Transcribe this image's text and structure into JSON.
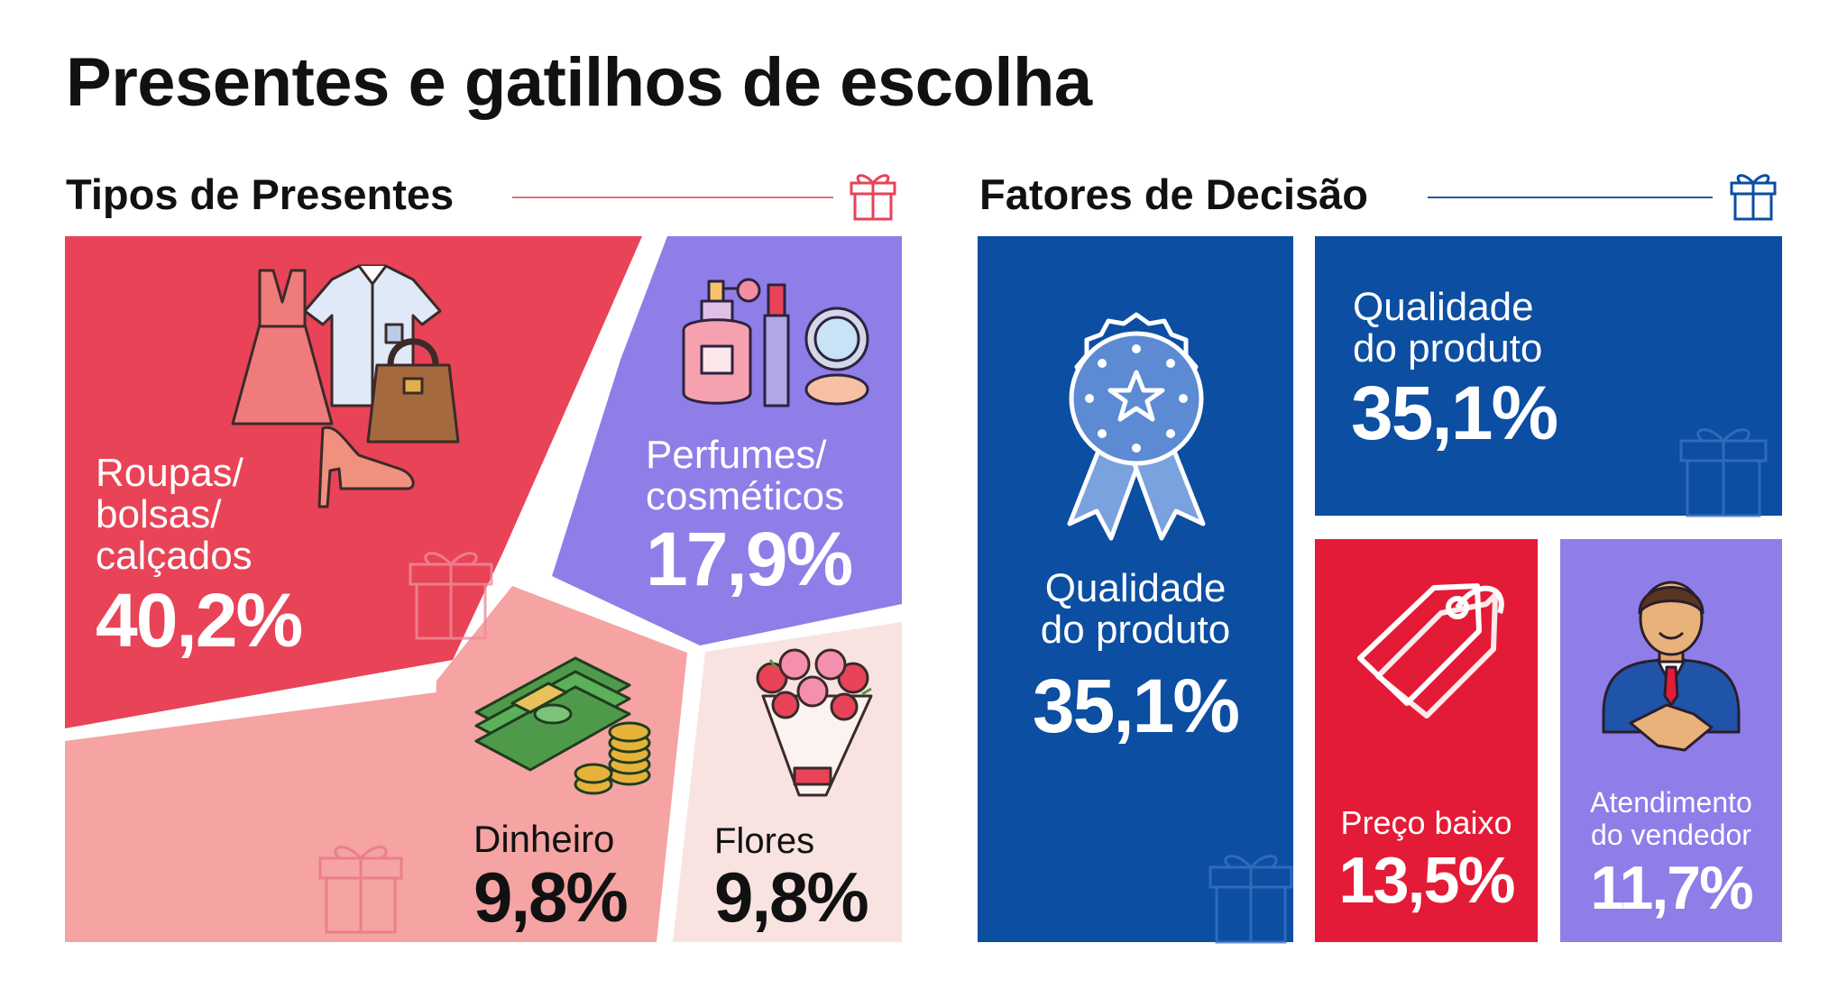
{
  "page": {
    "title": "Presentes e gatilhos de escolha"
  },
  "colors": {
    "roupas": "#e84357",
    "perfumes": "#8f7de8",
    "dinheiro": "#f5a3a3",
    "flores": "#f9e3e1",
    "outros": "#f5a3a3",
    "blue": "#0b4ea2",
    "preco": "#e31b37",
    "atendimento": "#8f7de8"
  },
  "chart_data": [
    {
      "type": "treemap",
      "title": "Tipos de Presentes",
      "items": [
        {
          "label": "Roupas/\nbolsas/\ncalçados",
          "value": 40.2,
          "display": "40,2%",
          "icon": "clothing-icon"
        },
        {
          "label": "Perfumes/\ncosméticos",
          "value": 17.9,
          "display": "17,9%",
          "icon": "perfume-cosmetics-icon"
        },
        {
          "label": "Dinheiro",
          "value": 9.8,
          "display": "9,8%",
          "icon": "money-icon"
        },
        {
          "label": "Flores",
          "value": 9.8,
          "display": "9,8%",
          "icon": "flower-bouquet-icon"
        }
      ]
    },
    {
      "type": "treemap",
      "title": "Fatores de Decisão",
      "items": [
        {
          "label": "Qualidade\ndo produto",
          "value": 35.1,
          "display": "35,1%",
          "icon": "award-ribbon-icon"
        },
        {
          "label": "Qualidade\ndo produto",
          "value": 35.1,
          "display": "35,1%",
          "icon": "gift-icon"
        },
        {
          "label": "Preço baixo",
          "value": 13.5,
          "display": "13,5%",
          "icon": "price-tag-icon"
        },
        {
          "label": "Atendimento\ndo vendedor",
          "value": 11.7,
          "display": "11,7%",
          "icon": "salesperson-handshake-icon"
        }
      ]
    }
  ]
}
